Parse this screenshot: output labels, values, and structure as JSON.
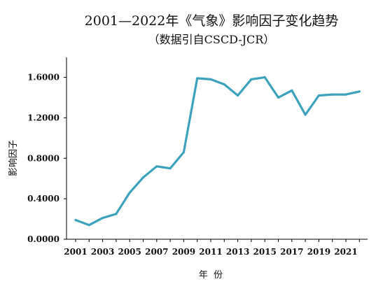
{
  "chart_data": {
    "type": "line",
    "title": "2001—2022年《气象》影响因子变化趋势",
    "subtitle": "（数据引自CSCD-JCR）",
    "xlabel": "年  份",
    "ylabel": "影响因子",
    "ylim": [
      0,
      1.8
    ],
    "y_ticks": [
      "0.0000",
      "0.4000",
      "0.8000",
      "1.2000",
      "1.6000"
    ],
    "x_tick_labels": [
      "2001",
      "2003",
      "2005",
      "2007",
      "2009",
      "2011",
      "2013",
      "2015",
      "2017",
      "2019",
      "2021"
    ],
    "grid": false,
    "line_color": "#3da3bd",
    "series": [
      {
        "x": [
          2001,
          2002,
          2003,
          2004,
          2005,
          2006,
          2007,
          2008,
          2009,
          2010,
          2011,
          2012,
          2013,
          2014,
          2015,
          2016,
          2017,
          2018,
          2019,
          2020,
          2021,
          2022
        ],
        "values": [
          0.19,
          0.14,
          0.21,
          0.25,
          0.46,
          0.61,
          0.72,
          0.7,
          0.86,
          1.59,
          1.58,
          1.53,
          1.42,
          1.58,
          1.6,
          1.4,
          1.47,
          1.23,
          1.42,
          1.43,
          1.43,
          1.46
        ]
      }
    ]
  }
}
